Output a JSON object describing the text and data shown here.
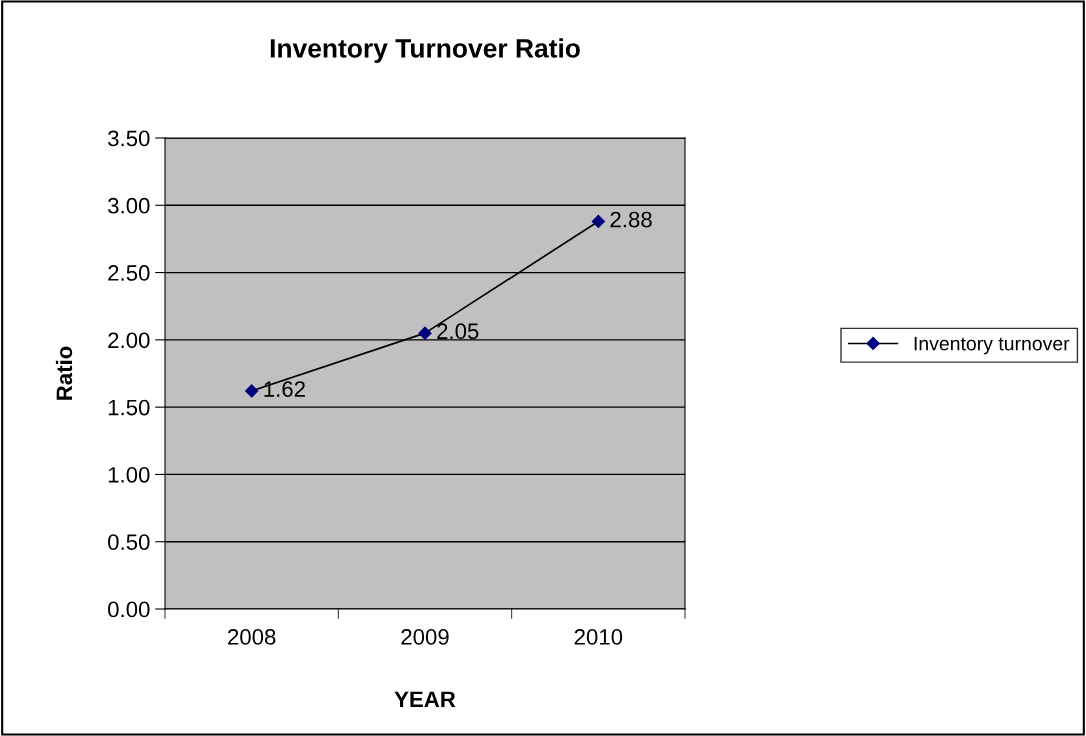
{
  "chart_data": {
    "type": "line",
    "title": "Inventory Turnover Ratio",
    "xlabel": "YEAR",
    "ylabel": "Ratio",
    "categories": [
      "2008",
      "2009",
      "2010"
    ],
    "series": [
      {
        "name": "Inventory turnover",
        "color": "#000080",
        "values": [
          1.62,
          2.05,
          2.88
        ]
      }
    ],
    "ylim": [
      0,
      3.5
    ],
    "yticks": [
      {
        "value": 0,
        "label": "0.00"
      },
      {
        "value": 0.5,
        "label": "0.50"
      },
      {
        "value": 1,
        "label": "1.00"
      },
      {
        "value": 1.5,
        "label": "1.50"
      },
      {
        "value": 2,
        "label": "2.00"
      },
      {
        "value": 2.5,
        "label": "2.50"
      },
      {
        "value": 3,
        "label": "3.00"
      },
      {
        "value": 3.5,
        "label": "3.50"
      }
    ],
    "grid": "y",
    "legend": "right",
    "marker": "diamond",
    "line_style": "solid",
    "data_labels": true
  }
}
